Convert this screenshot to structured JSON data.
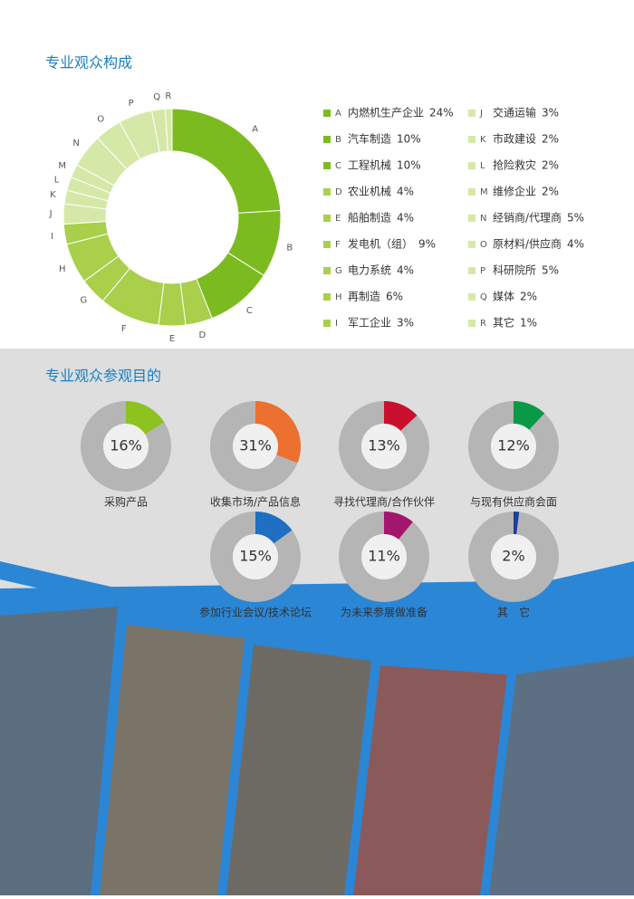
{
  "chart_data": [
    {
      "type": "donut",
      "title": "专业观众构成",
      "categories": [
        "A",
        "B",
        "C",
        "D",
        "E",
        "F",
        "G",
        "H",
        "I",
        "J",
        "K",
        "L",
        "M",
        "N",
        "O",
        "P",
        "Q",
        "R"
      ],
      "category_names": [
        "内燃机生产企业",
        "汽车制造",
        "工程机械",
        "农业机械",
        "船舶制造",
        "发电机（组）",
        "电力系统",
        "再制造",
        "军工企业",
        "交通运输",
        "市政建设",
        "抢险救灾",
        "维修企业",
        "经销商/代理商",
        "原材料/供应商",
        "科研院所",
        "媒体",
        "其它"
      ],
      "values": [
        24,
        10,
        10,
        4,
        4,
        9,
        4,
        6,
        3,
        3,
        2,
        2,
        2,
        5,
        4,
        5,
        2,
        1
      ],
      "value_labels": [
        "24%",
        "10%",
        "10%",
        "4%",
        "4%",
        "9%",
        "4%",
        "6%",
        "3%",
        "3%",
        "2%",
        "2%",
        "2%",
        "5%",
        "4%",
        "5%",
        "2%",
        "1%"
      ],
      "colors": [
        "#7cbb1f",
        "#7cbb1f",
        "#7cbb1f",
        "#a9cf4b",
        "#a9cf4b",
        "#a9cf4b",
        "#a9cf4b",
        "#a9cf4b",
        "#a9cf4b",
        "#d6e8a8",
        "#d6e8a8",
        "#d6e8a8",
        "#d6e8a8",
        "#d6e8a8",
        "#d6e8a8",
        "#d6e8a8",
        "#d6e8a8",
        "#d6e8a8"
      ]
    },
    {
      "type": "gauge",
      "title": "专业观众参观目的",
      "categories": [
        "采购产品",
        "收集市场/产品信息",
        "寻找代理商/合作伙伴",
        "与现有供应商会面",
        "参加行业会议/技术论坛",
        "为未来参展做准备",
        "其　它"
      ],
      "values": [
        16,
        31,
        13,
        12,
        15,
        11,
        2
      ],
      "value_labels": [
        "16%",
        "31%",
        "13%",
        "12%",
        "15%",
        "11%",
        "2%"
      ],
      "colors": [
        "#8dc21f",
        "#ec7030",
        "#c8102e",
        "#0a9a46",
        "#1f6fc2",
        "#a4156e",
        "#1a3e9a"
      ],
      "track_color": "#b5b5b5"
    }
  ]
}
